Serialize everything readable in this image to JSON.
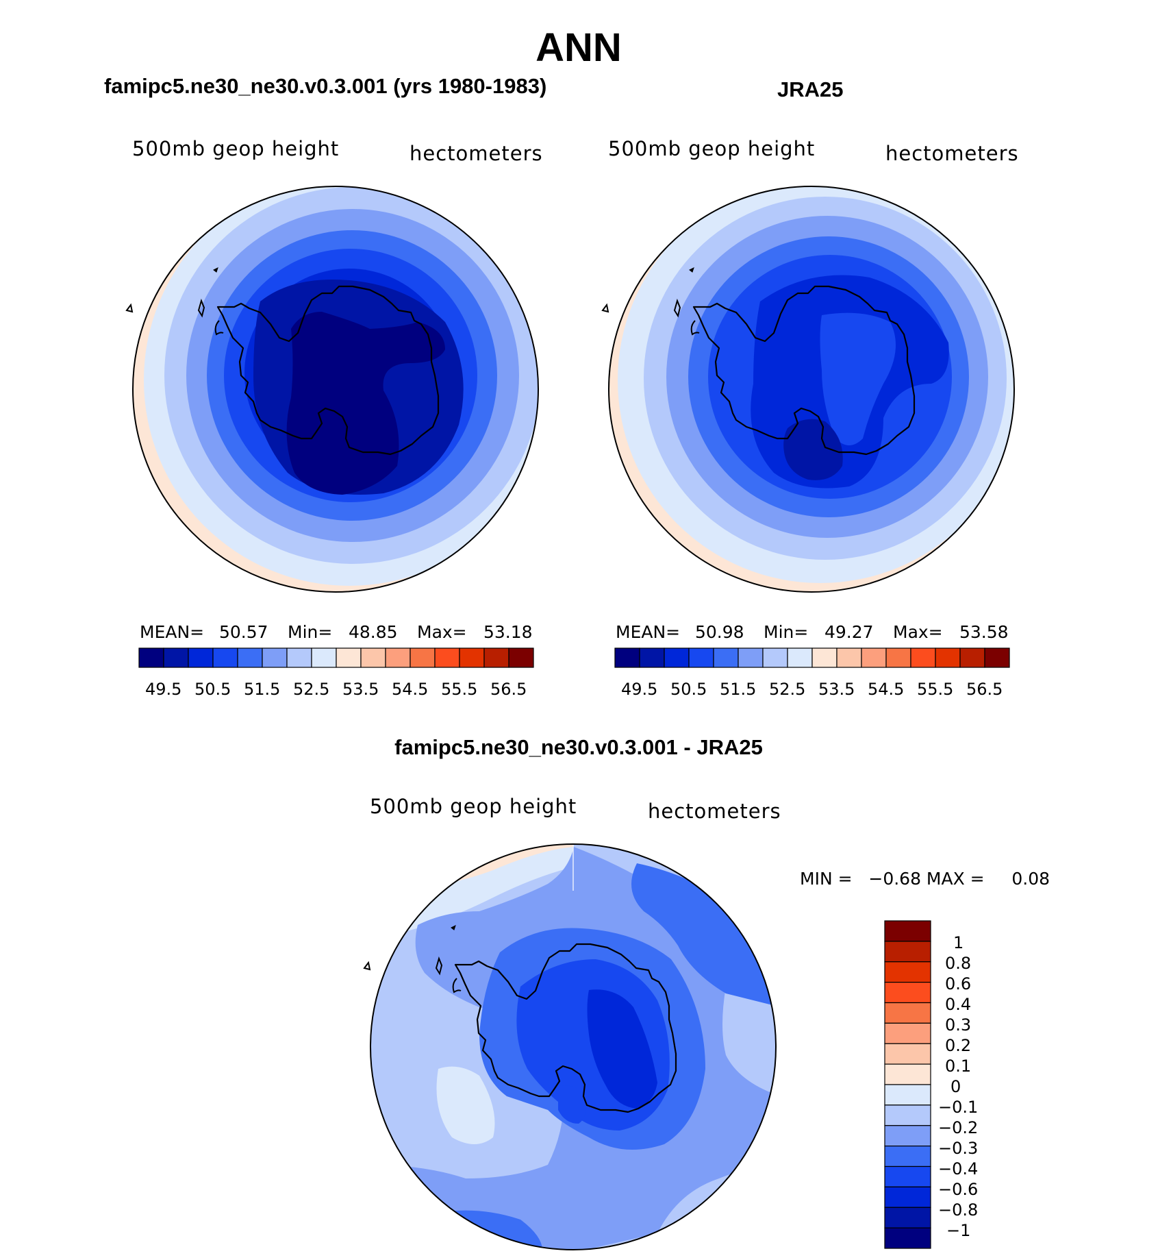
{
  "main_title": "ANN",
  "panels": [
    {
      "title": "famipc5.ne30_ne30.v0.3.001 (yrs 1980-1983)",
      "field_label": "500mb geop height",
      "units_label": "hectometers",
      "stats": {
        "mean_label": "MEAN=",
        "mean": "50.57",
        "min_label": "Min=",
        "min": "48.85",
        "max_label": "Max=",
        "max": "53.18"
      }
    },
    {
      "title": "JRA25",
      "field_label": "500mb geop height",
      "units_label": "hectometers",
      "stats": {
        "mean_label": "MEAN=",
        "mean": "50.98",
        "min_label": "Min=",
        "min": "49.27",
        "max_label": "Max=",
        "max": "53.58"
      }
    }
  ],
  "diff_panel": {
    "title": "famipc5.ne30_ne30.v0.3.001 - JRA25",
    "field_label": "500mb geop height",
    "units_label": "hectometers",
    "minmax_text": "MIN =   −0.68 MAX =     0.08"
  },
  "colorbar_main": {
    "colors": [
      "#00007f",
      "#0015a6",
      "#0027d9",
      "#1748f0",
      "#3b6ef5",
      "#7e9ef7",
      "#b4c9fb",
      "#dbe9fc",
      "#fde6d6",
      "#fcc6aa",
      "#fc9f7d",
      "#f77545",
      "#fc4d1e",
      "#e33300",
      "#b81f00",
      "#7b0000"
    ],
    "tick_labels": [
      "49.5",
      "50.5",
      "51.5",
      "52.5",
      "53.5",
      "54.5",
      "55.5",
      "56.5"
    ]
  },
  "colorbar_diff": {
    "colors": [
      "#00007f",
      "#0015a6",
      "#0027d9",
      "#1748f0",
      "#3b6ef5",
      "#7e9ef7",
      "#b4c9fb",
      "#dbe9fc",
      "#fde6d6",
      "#fcc6aa",
      "#fc9f7d",
      "#f77545",
      "#fc4d1e",
      "#e33300",
      "#b81f00",
      "#7b0000"
    ],
    "tick_labels": [
      "1",
      "0.8",
      "0.6",
      "0.4",
      "0.3",
      "0.2",
      "0.1",
      "0",
      "−0.1",
      "−0.2",
      "−0.3",
      "−0.4",
      "−0.6",
      "−0.8",
      "−1"
    ]
  },
  "map_colors": {
    "m1": "#00007f",
    "m2": "#0015a6",
    "m3": "#0027d9",
    "m4": "#1748f0",
    "m5": "#3b6ef5",
    "m6": "#7e9ef7",
    "m7": "#b4c9fb",
    "m8": "#dbe9fc",
    "m9": "#fde6d6"
  }
}
